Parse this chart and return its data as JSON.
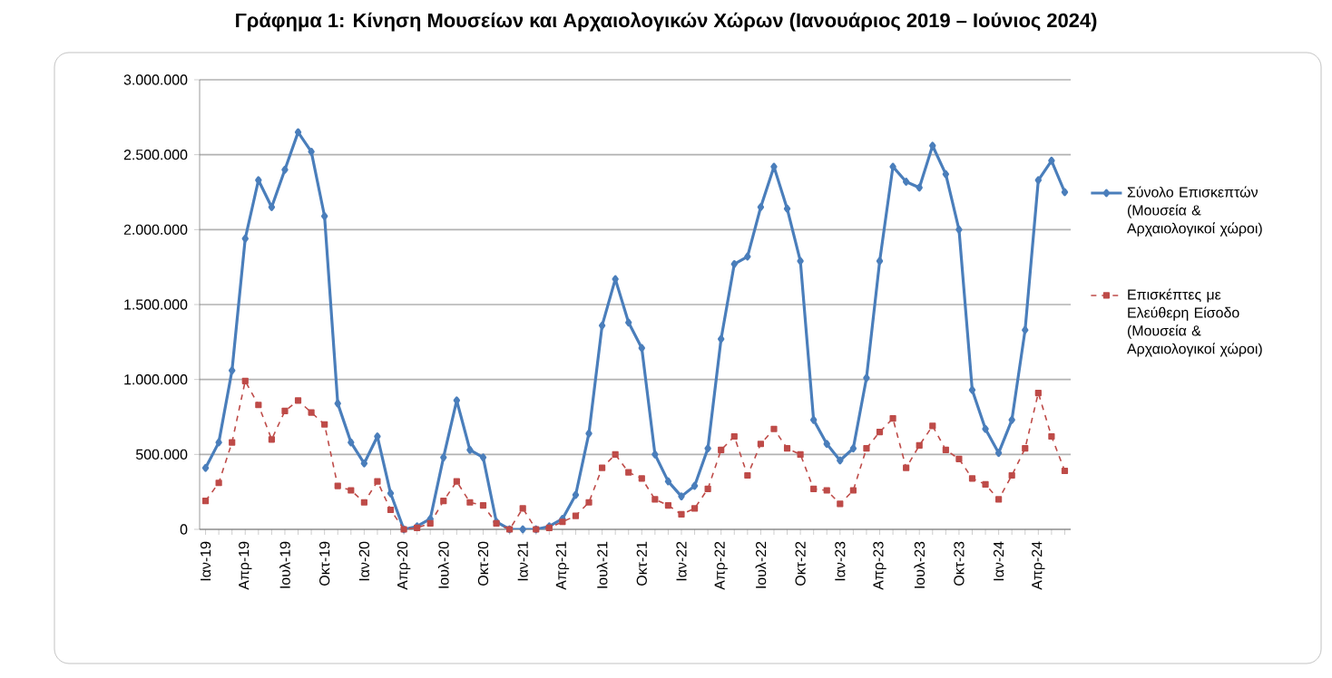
{
  "chart_data": {
    "type": "line",
    "title": "Γράφημα 1: Κίνηση Μουσείων και Αρχαιολογικών Χώρων (Ιανουάριος 2019 – Ιούνιος 2024)",
    "categories": [
      "Ιαν-19",
      null,
      null,
      "Απρ-19",
      null,
      null,
      "Ιουλ-19",
      null,
      null,
      "Οκτ-19",
      null,
      null,
      "Ιαν-20",
      null,
      null,
      "Απρ-20",
      null,
      null,
      "Ιουλ-20",
      null,
      null,
      "Οκτ-20",
      null,
      null,
      "Ιαν-21",
      null,
      null,
      "Απρ-21",
      null,
      null,
      "Ιουλ-21",
      null,
      null,
      "Οκτ-21",
      null,
      null,
      "Ιαν-22",
      null,
      null,
      "Απρ-22",
      null,
      null,
      "Ιουλ-22",
      null,
      null,
      "Οκτ-22",
      null,
      null,
      "Ιαν-23",
      null,
      null,
      "Απρ-23",
      null,
      null,
      "Ιουλ-23",
      null,
      null,
      "Οκτ-23",
      null,
      null,
      "Ιαν-24",
      null,
      null,
      "Απρ-24",
      null,
      null
    ],
    "series": [
      {
        "name": "Σύνολο Επισκεπτών (Μουσεία & Αρχαιολογικοί χώροι)",
        "color": "#4a7ebb",
        "marker": "diamond",
        "line_style": "solid",
        "values": [
          410000,
          580000,
          1060000,
          1940000,
          2330000,
          2150000,
          2400000,
          2650000,
          2520000,
          2090000,
          840000,
          580000,
          440000,
          620000,
          240000,
          0,
          20000,
          70000,
          480000,
          860000,
          530000,
          480000,
          50000,
          0,
          0,
          0,
          20000,
          70000,
          230000,
          640000,
          1360000,
          1670000,
          1380000,
          1210000,
          500000,
          320000,
          220000,
          290000,
          540000,
          1270000,
          1770000,
          1820000,
          2150000,
          2420000,
          2140000,
          1790000,
          730000,
          570000,
          460000,
          540000,
          1010000,
          1790000,
          2420000,
          2320000,
          2280000,
          2560000,
          2370000,
          2000000,
          930000,
          670000,
          510000,
          730000,
          1330000,
          2330000,
          2460000,
          2250000
        ]
      },
      {
        "name": "Επισκέπτες με Ελεύθερη Είσοδο (Μουσεία & Αρχαιολογικοί χώροι)",
        "color": "#be4b48",
        "marker": "square",
        "line_style": "dashed",
        "values": [
          190000,
          310000,
          580000,
          990000,
          830000,
          600000,
          790000,
          860000,
          780000,
          700000,
          290000,
          260000,
          180000,
          320000,
          130000,
          0,
          10000,
          40000,
          190000,
          320000,
          180000,
          160000,
          40000,
          0,
          140000,
          0,
          10000,
          50000,
          90000,
          180000,
          410000,
          500000,
          380000,
          340000,
          200000,
          160000,
          100000,
          140000,
          270000,
          530000,
          620000,
          360000,
          570000,
          670000,
          540000,
          500000,
          270000,
          260000,
          170000,
          260000,
          540000,
          650000,
          740000,
          410000,
          560000,
          690000,
          530000,
          470000,
          340000,
          300000,
          200000,
          360000,
          540000,
          910000,
          620000,
          390000
        ]
      }
    ],
    "ylim": [
      0,
      3000000
    ],
    "yticks": [
      0,
      {
        "value": 500000,
        "label": "500.000"
      },
      {
        "value": 1000000,
        "label": "1.000.000"
      },
      {
        "value": 1500000,
        "label": "1.500.000"
      },
      {
        "value": 2000000,
        "label": "2.000.000"
      },
      {
        "value": 2500000,
        "label": "2.500.000"
      },
      {
        "value": 3000000,
        "label": "3.000.000"
      }
    ],
    "grid": "y",
    "legend": "right"
  }
}
